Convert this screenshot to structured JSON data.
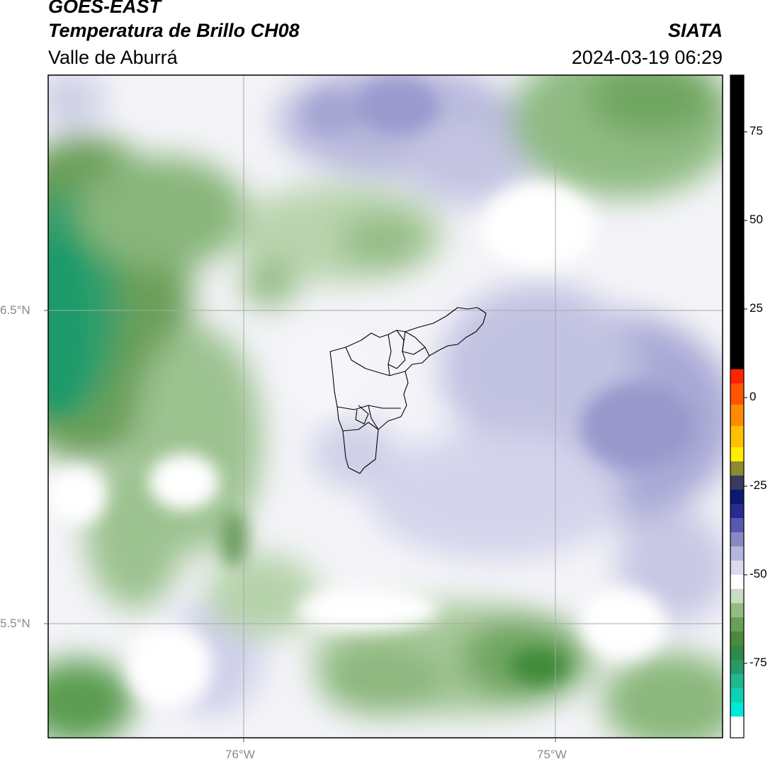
{
  "header": {
    "satellite": "GOES-EAST",
    "product": "Temperatura de Brillo CH08",
    "region": "Valle de Aburrá",
    "organization": "SIATA",
    "datetime": "2024-03-19 06:29"
  },
  "map": {
    "lat_ticks": [
      "6.5°N",
      "5.5°N"
    ],
    "lon_ticks": [
      "76°W",
      "75°W"
    ],
    "gridlines": true
  },
  "colorbar": {
    "ticks": [
      "75",
      "50",
      "25",
      "0",
      "-25",
      "-50",
      "-75"
    ],
    "tick_values": [
      75,
      50,
      25,
      0,
      -25,
      -50,
      -75
    ],
    "range": [
      -96,
      91
    ],
    "colors": {
      "warm": "#000000",
      "hot": "#ff2200",
      "orange": "#ff8c00",
      "yellow": "#ffee00",
      "navy": "#0b1a6e",
      "lavender": "#b6b6dc",
      "white": "#ffffff",
      "green": "#4a8a3c",
      "teal": "#1fb890",
      "cyan": "#00e8d8"
    }
  }
}
